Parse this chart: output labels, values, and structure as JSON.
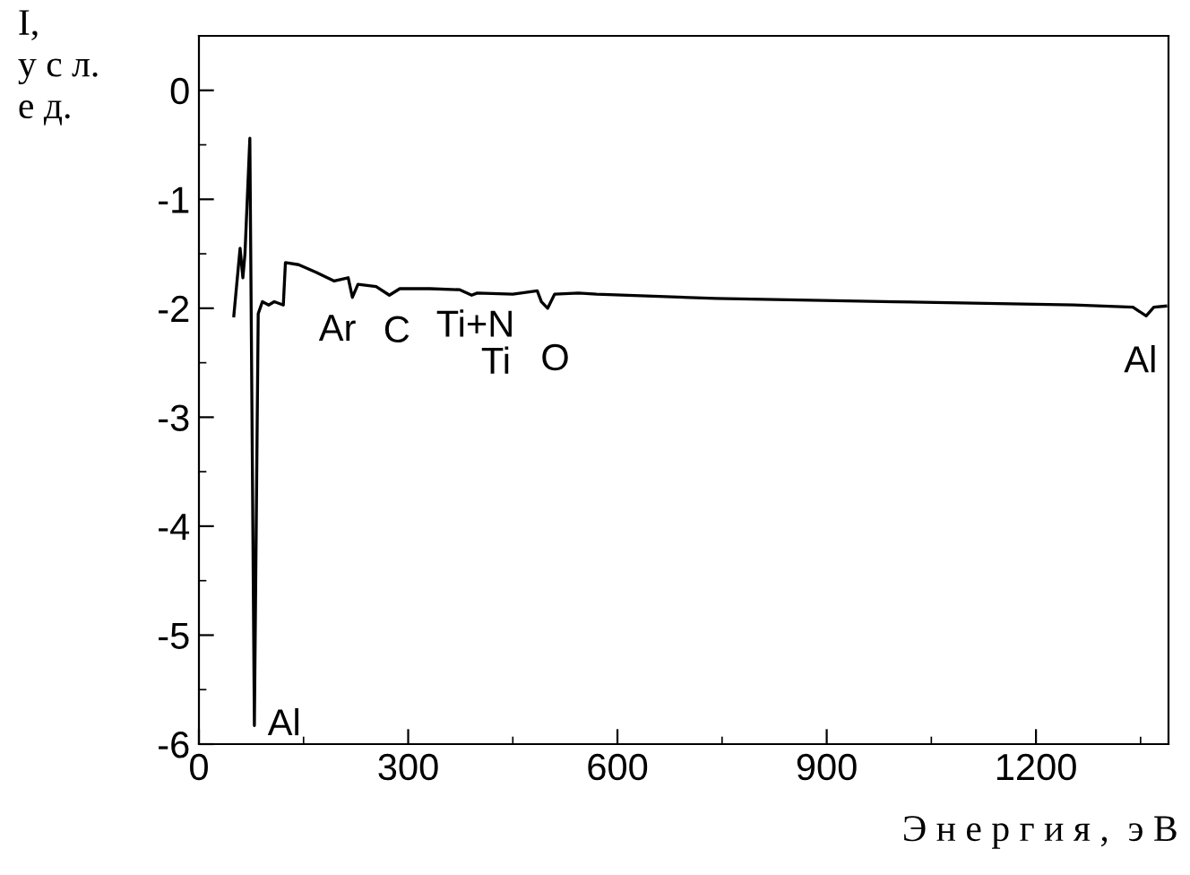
{
  "chart_data": {
    "type": "line",
    "xlabel": "Э н е р г и я ,  э В",
    "ylabel": "I,\nу с л.\nе д.",
    "series": [
      {
        "color": "#000000",
        "x": [
          50,
          59,
          63,
          66,
          73,
          79.5,
          85,
          91,
          100,
          108,
          121,
          124,
          143,
          168,
          194,
          214,
          220,
          228,
          254,
          273,
          288,
          331,
          374,
          391,
          399,
          450,
          485,
          491,
          500,
          510,
          544,
          570,
          741,
          997,
          1254,
          1339,
          1358,
          1369,
          1386
        ],
        "values": [
          -2.07,
          -1.45,
          -1.72,
          -1.5,
          -0.44,
          -5.83,
          -2.05,
          -1.94,
          -1.97,
          -1.94,
          -1.97,
          -1.58,
          -1.6,
          -1.67,
          -1.75,
          -1.72,
          -1.9,
          -1.78,
          -1.8,
          -1.88,
          -1.82,
          -1.82,
          -1.83,
          -1.88,
          -1.86,
          -1.87,
          -1.84,
          -1.94,
          -2.0,
          -1.87,
          -1.86,
          -1.87,
          -1.91,
          -1.94,
          -1.97,
          -1.99,
          -2.07,
          -1.99,
          -1.98
        ]
      }
    ],
    "annotations": [
      {
        "text": "Al",
        "x": 79.5,
        "y": -5.83
      },
      {
        "text": "Ar",
        "x": 220,
        "y": -1.9
      },
      {
        "text": "C",
        "x": 273,
        "y": -1.88
      },
      {
        "text": "Ti+N",
        "x": 391,
        "y": -1.88
      },
      {
        "text": "Ti",
        "x": 399,
        "y": -1.86
      },
      {
        "text": "O",
        "x": 500,
        "y": -2.0
      },
      {
        "text": "Al",
        "x": 1358,
        "y": -2.07
      }
    ],
    "xlim": [
      0,
      1390
    ],
    "xticks": [
      0,
      300,
      600,
      900,
      1200
    ],
    "ylim": [
      -6,
      0.5
    ],
    "yticks": [
      0,
      -1,
      -2,
      -3,
      -4,
      -5,
      -6
    ],
    "grid": false,
    "marker": "none",
    "line_style": "solid"
  }
}
